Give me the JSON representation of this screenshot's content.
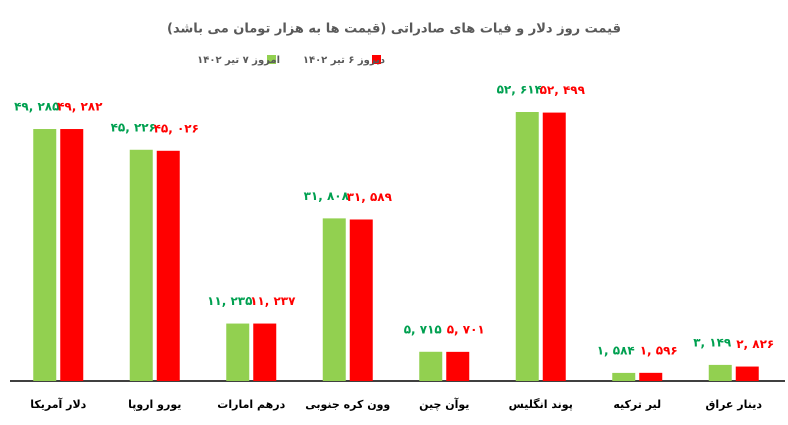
{
  "chart_data": {
    "type": "bar",
    "title": "قیمت روز دلار و فیات های صادراتی (قیمت ها به هزار تومان می باشد)",
    "categories": [
      "دلار آمریکا",
      "یورو اروپا",
      "درهم امارات",
      "وون کره جنوبی",
      "یوآن چین",
      "پوند انگلیس",
      "لیر ترکیه",
      "دینار عراق"
    ],
    "series": [
      {
        "name": "امروز ۷ تیر ۱۴۰۲",
        "color": "#92d050",
        "values": [
          49285,
          45226,
          11235,
          31808,
          5715,
          52614,
          1584,
          3149
        ],
        "value_labels": [
          "۴۹, ۲۸۵",
          "۴۵, ۲۲۶",
          "۱۱, ۲۳۵",
          "۳۱, ۸۰۸",
          "۵, ۷۱۵",
          "۵۲, ۶۱۴",
          "۱, ۵۸۴",
          "۳, ۱۴۹"
        ]
      },
      {
        "name": "دیروز ۶ تیر ۱۴۰۲",
        "color": "#ff0000",
        "values": [
          49282,
          45026,
          11237,
          31589,
          5701,
          52499,
          1596,
          2826
        ],
        "value_labels": [
          "۴۹, ۲۸۲",
          "۴۵, ۰۲۶",
          "۱۱, ۲۳۷",
          "۳۱, ۵۸۹",
          "۵, ۷۰۱",
          "۵۲, ۴۹۹",
          "۱, ۵۹۶",
          "۲, ۸۲۶"
        ]
      }
    ]
  }
}
